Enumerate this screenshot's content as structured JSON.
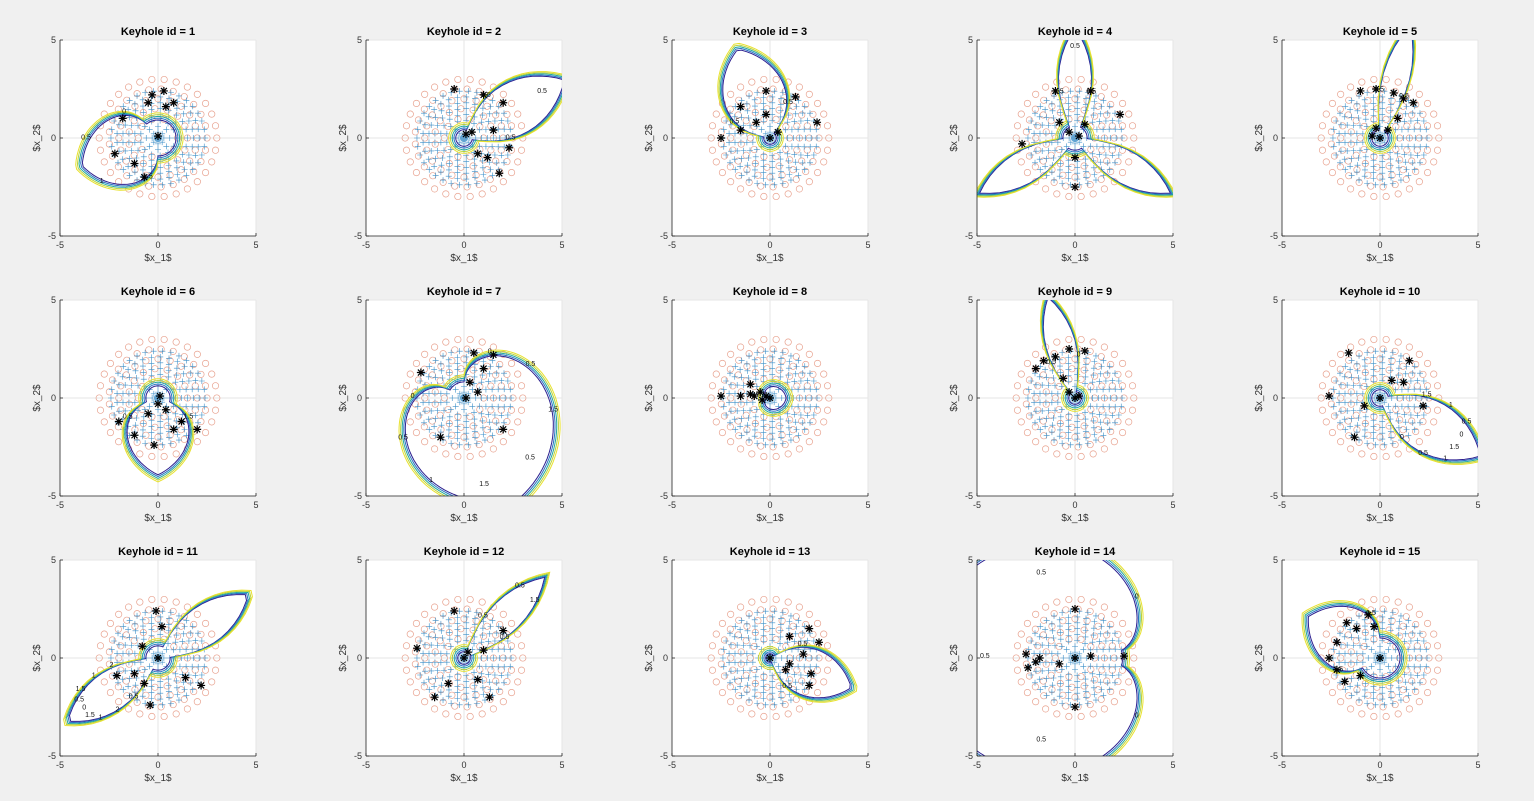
{
  "figure": {
    "background": "#f0f0f0",
    "axes_background": "#ffffff",
    "colors": {
      "grid": "#e6e6e6",
      "circles": "#e0836a",
      "plus": "#3c8fc8",
      "star": "#000000",
      "contours": [
        "#2c1f8f",
        "#2a72c4",
        "#23a9a0",
        "#b9d23c",
        "#e8e12d"
      ]
    }
  },
  "chart_data": [
    {
      "type": "contour",
      "title": "Keyhole id = 1",
      "xlabel": "$x_1$",
      "ylabel": "$x_2$",
      "xlim": [
        -5,
        5
      ],
      "ylim": [
        -5,
        5
      ],
      "xticks": [
        -5,
        0,
        5
      ],
      "yticks": [
        -5,
        0,
        5
      ],
      "grid": true,
      "keyhole": {
        "dir_deg": 200,
        "half_width_deg": 70,
        "base_radius": 1.1,
        "reach": 3.2,
        "lobes": 1
      },
      "contour_levels": [
        "0",
        "0.5",
        "1",
        "1.5"
      ],
      "stars": [
        [
          0.3,
          2.4
        ],
        [
          0.8,
          1.8
        ],
        [
          -0.5,
          1.8
        ],
        [
          -1.8,
          1.0
        ],
        [
          -2.2,
          -0.8
        ],
        [
          -1.2,
          -1.3
        ],
        [
          -0.7,
          -2.0
        ],
        [
          0.0,
          0.1
        ],
        [
          0.4,
          1.6
        ],
        [
          -0.3,
          2.2
        ]
      ]
    },
    {
      "type": "contour",
      "title": "Keyhole id = 2",
      "xlabel": "$x_1$",
      "ylabel": "$x_2$",
      "xlim": [
        -5,
        5
      ],
      "ylim": [
        -5,
        5
      ],
      "xticks": [
        -5,
        0,
        5
      ],
      "yticks": [
        -5,
        0,
        5
      ],
      "grid": true,
      "keyhole": {
        "dir_deg": 30,
        "half_width_deg": 40,
        "base_radius": 0.6,
        "reach": 5.5,
        "lobes": 1
      },
      "contour_levels": [
        "0.5",
        "0.5",
        "0.5"
      ],
      "stars": [
        [
          -0.5,
          2.5
        ],
        [
          1.0,
          2.2
        ],
        [
          2.0,
          1.8
        ],
        [
          1.5,
          0.4
        ],
        [
          2.3,
          -0.5
        ],
        [
          1.8,
          -1.8
        ],
        [
          1.2,
          -1.0
        ],
        [
          0.4,
          0.3
        ],
        [
          0.7,
          -0.8
        ],
        [
          0.1,
          0.2
        ]
      ]
    },
    {
      "type": "contour",
      "title": "Keyhole id = 3",
      "xlabel": "$x_1$",
      "ylabel": "$x_2$",
      "xlim": [
        -5,
        5
      ],
      "ylim": [
        -5,
        5
      ],
      "xticks": [
        -5,
        0,
        5
      ],
      "yticks": [
        -5,
        0,
        5
      ],
      "grid": true,
      "keyhole": {
        "dir_deg": 110,
        "half_width_deg": 60,
        "base_radius": 0.5,
        "reach": 4.5,
        "lobes": 1
      },
      "contour_levels": [
        "0.5",
        "0.5"
      ],
      "stars": [
        [
          -1.5,
          1.6
        ],
        [
          -0.2,
          2.4
        ],
        [
          1.3,
          2.1
        ],
        [
          2.4,
          0.8
        ],
        [
          -2.5,
          0.0
        ],
        [
          -1.5,
          0.4
        ],
        [
          -0.7,
          0.8
        ],
        [
          -0.2,
          1.2
        ],
        [
          0.4,
          0.3
        ],
        [
          0.0,
          0.0
        ]
      ]
    },
    {
      "type": "contour",
      "title": "Keyhole id = 4",
      "xlabel": "$x_1$",
      "ylabel": "$x_2$",
      "xlim": [
        -5,
        5
      ],
      "ylim": [
        -5,
        5
      ],
      "xticks": [
        -5,
        0,
        5
      ],
      "yticks": [
        -5,
        0,
        5
      ],
      "grid": true,
      "keyhole": {
        "dir_deg": 90,
        "half_width_deg": 25,
        "base_radius": 0.8,
        "reach": 5.0,
        "lobes": 3
      },
      "contour_levels": [
        "0.5",
        "0.5",
        "1.5"
      ],
      "stars": [
        [
          -1.0,
          2.4
        ],
        [
          0.8,
          2.4
        ],
        [
          2.3,
          1.2
        ],
        [
          -2.7,
          -0.3
        ],
        [
          0.0,
          -2.5
        ],
        [
          -0.8,
          0.8
        ],
        [
          0.5,
          0.7
        ],
        [
          0.0,
          -1.0
        ],
        [
          -0.3,
          0.3
        ],
        [
          0.2,
          0.1
        ]
      ]
    },
    {
      "type": "contour",
      "title": "Keyhole id = 5",
      "xlabel": "$x_1$",
      "ylabel": "$x_2$",
      "xlim": [
        -5,
        5
      ],
      "ylim": [
        -5,
        5
      ],
      "xticks": [
        -5,
        0,
        5
      ],
      "yticks": [
        -5,
        0,
        5
      ],
      "grid": true,
      "keyhole": {
        "dir_deg": 75,
        "half_width_deg": 20,
        "base_radius": 0.6,
        "reach": 5.5,
        "lobes": 1
      },
      "contour_levels": [
        "0.5",
        "0.5"
      ],
      "stars": [
        [
          -1.0,
          2.4
        ],
        [
          -0.2,
          2.5
        ],
        [
          0.7,
          2.3
        ],
        [
          1.2,
          2.0
        ],
        [
          1.7,
          1.8
        ],
        [
          0.9,
          1.0
        ],
        [
          -0.2,
          0.5
        ],
        [
          0.4,
          0.4
        ],
        [
          -0.4,
          0.1
        ],
        [
          0.0,
          0.0
        ]
      ]
    },
    {
      "type": "contour",
      "title": "Keyhole id = 6",
      "xlabel": "$x_1$",
      "ylabel": "$x_2$",
      "xlim": [
        -5,
        5
      ],
      "ylim": [
        -5,
        5
      ],
      "xticks": [
        -5,
        0,
        5
      ],
      "yticks": [
        -5,
        0,
        5
      ],
      "grid": true,
      "keyhole": {
        "dir_deg": 270,
        "half_width_deg": 70,
        "base_radius": 0.8,
        "reach": 3.3,
        "lobes": 1
      },
      "contour_levels": [
        "0.5",
        "1.5"
      ],
      "stars": [
        [
          -2.0,
          -1.2
        ],
        [
          -1.2,
          -1.9
        ],
        [
          -0.2,
          -2.4
        ],
        [
          0.8,
          -1.6
        ],
        [
          1.2,
          -1.2
        ],
        [
          2.0,
          -1.6
        ],
        [
          -0.5,
          -0.8
        ],
        [
          0.4,
          -0.6
        ],
        [
          0.0,
          -0.3
        ],
        [
          0.1,
          0.1
        ]
      ]
    },
    {
      "type": "contour",
      "title": "Keyhole id = 7",
      "xlabel": "$x_1$",
      "ylabel": "$x_2$",
      "xlim": [
        -5,
        5
      ],
      "ylim": [
        -5,
        5
      ],
      "xticks": [
        -5,
        0,
        5
      ],
      "yticks": [
        -5,
        0,
        5
      ],
      "grid": true,
      "keyhole": {
        "dir_deg": 300,
        "half_width_deg": 150,
        "base_radius": 1.0,
        "reach": 5.0,
        "lobes": 1
      },
      "contour_levels": [
        "0",
        "0.5",
        "1",
        "1.5",
        "0.5",
        "1.5",
        "0.5",
        "0"
      ],
      "stars": [
        [
          -2.2,
          1.3
        ],
        [
          0.5,
          2.3
        ],
        [
          1.0,
          1.5
        ],
        [
          1.5,
          2.2
        ],
        [
          2.0,
          -1.6
        ],
        [
          -1.2,
          -2.0
        ],
        [
          0.3,
          0.8
        ],
        [
          0.7,
          0.3
        ],
        [
          0.1,
          0.0
        ]
      ]
    },
    {
      "type": "contour",
      "title": "Keyhole id = 8",
      "xlabel": "$x_1$",
      "ylabel": "$x_2$",
      "xlim": [
        -5,
        5
      ],
      "ylim": [
        -5,
        5
      ],
      "xticks": [
        -5,
        0,
        5
      ],
      "yticks": [
        -5,
        0,
        5
      ],
      "grid": true,
      "keyhole": {
        "dir_deg": 0,
        "half_width_deg": 160,
        "base_radius": 0.4,
        "reach": 0.6,
        "lobes": 1
      },
      "contour_levels": [],
      "stars": [
        [
          -2.5,
          0.1
        ],
        [
          -1.5,
          0.1
        ],
        [
          -1.0,
          0.2
        ],
        [
          -0.8,
          0.1
        ],
        [
          -0.5,
          0.3
        ],
        [
          -1.0,
          0.7
        ],
        [
          -0.4,
          -0.1
        ],
        [
          -0.2,
          0.1
        ],
        [
          0.0,
          0.0
        ]
      ]
    },
    {
      "type": "contour",
      "title": "Keyhole id = 9",
      "xlabel": "$x_1$",
      "ylabel": "$x_2$",
      "xlim": [
        -5,
        5
      ],
      "ylim": [
        -5,
        5
      ],
      "xticks": [
        -5,
        0,
        5
      ],
      "yticks": [
        -5,
        0,
        5
      ],
      "grid": true,
      "keyhole": {
        "dir_deg": 105,
        "half_width_deg": 25,
        "base_radius": 0.5,
        "reach": 5.0,
        "lobes": 1
      },
      "contour_levels": [
        "0",
        "0.5"
      ],
      "stars": [
        [
          -2.0,
          1.5
        ],
        [
          -1.6,
          1.9
        ],
        [
          -1.0,
          2.1
        ],
        [
          -0.3,
          2.5
        ],
        [
          0.5,
          2.4
        ],
        [
          -0.6,
          1.0
        ],
        [
          -0.3,
          0.3
        ],
        [
          0.2,
          0.1
        ],
        [
          0.0,
          0.0
        ]
      ]
    },
    {
      "type": "contour",
      "title": "Keyhole id = 10",
      "xlabel": "$x_1$",
      "ylabel": "$x_2$",
      "xlim": [
        -5,
        5
      ],
      "ylim": [
        -5,
        5
      ],
      "xticks": [
        -5,
        0,
        5
      ],
      "yticks": [
        -5,
        0,
        5
      ],
      "grid": true,
      "keyhole": {
        "dir_deg": 330,
        "half_width_deg": 40,
        "base_radius": 0.6,
        "reach": 5.5,
        "lobes": 1
      },
      "contour_levels": [
        "0",
        "0.5",
        "1",
        "1.5",
        "0",
        "0.5",
        "1",
        "1.5"
      ],
      "stars": [
        [
          -2.6,
          0.1
        ],
        [
          -1.6,
          2.3
        ],
        [
          -0.8,
          -0.4
        ],
        [
          -1.3,
          -2.0
        ],
        [
          0.6,
          0.9
        ],
        [
          1.5,
          1.9
        ],
        [
          2.2,
          -0.4
        ],
        [
          1.2,
          0.8
        ],
        [
          0.0,
          0.0
        ]
      ]
    },
    {
      "type": "contour",
      "title": "Keyhole id = 11",
      "xlabel": "$x_1$",
      "ylabel": "$x_2$",
      "xlim": [
        -5,
        5
      ],
      "ylim": [
        -5,
        5
      ],
      "xticks": [
        -5,
        0,
        5
      ],
      "yticks": [
        -5,
        0,
        5
      ],
      "grid": true,
      "keyhole": {
        "dir_deg": 215,
        "half_width_deg": 30,
        "base_radius": 0.8,
        "reach": 5.0,
        "lobes": 2
      },
      "contour_levels": [
        "2",
        "1",
        "1.5",
        "0.5",
        "0",
        "1.5",
        "1",
        "2",
        "0.5"
      ],
      "stars": [
        [
          -0.1,
          2.4
        ],
        [
          0.2,
          1.6
        ],
        [
          -0.8,
          0.6
        ],
        [
          -1.2,
          -0.8
        ],
        [
          -0.7,
          -1.3
        ],
        [
          -2.1,
          -0.9
        ],
        [
          1.4,
          -1.0
        ],
        [
          2.2,
          -1.4
        ],
        [
          -0.4,
          -2.4
        ],
        [
          0.0,
          0.0
        ]
      ]
    },
    {
      "type": "contour",
      "title": "Keyhole id = 12",
      "xlabel": "$x_1$",
      "ylabel": "$x_2$",
      "xlim": [
        -5,
        5
      ],
      "ylim": [
        -5,
        5
      ],
      "xticks": [
        -5,
        0,
        5
      ],
      "yticks": [
        -5,
        0,
        5
      ],
      "grid": true,
      "keyhole": {
        "dir_deg": 45,
        "half_width_deg": 25,
        "base_radius": 0.5,
        "reach": 5.5,
        "lobes": 1
      },
      "contour_levels": [
        "0.5",
        "1.5",
        "0.5",
        "0.5"
      ],
      "stars": [
        [
          -2.4,
          0.5
        ],
        [
          -0.5,
          2.4
        ],
        [
          2.0,
          1.4
        ],
        [
          1.0,
          0.4
        ],
        [
          0.7,
          -1.1
        ],
        [
          -0.8,
          -1.3
        ],
        [
          -1.5,
          -2.0
        ],
        [
          1.3,
          -2.0
        ],
        [
          0.2,
          0.3
        ],
        [
          0.0,
          0.0
        ]
      ]
    },
    {
      "type": "contour",
      "title": "Keyhole id = 13",
      "xlabel": "$x_1$",
      "ylabel": "$x_2$",
      "xlim": [
        -5,
        5
      ],
      "ylim": [
        -5,
        5
      ],
      "xticks": [
        -5,
        0,
        5
      ],
      "yticks": [
        -5,
        0,
        5
      ],
      "grid": true,
      "keyhole": {
        "dir_deg": 340,
        "half_width_deg": 50,
        "base_radius": 0.4,
        "reach": 4.2,
        "lobes": 1
      },
      "contour_levels": [
        "0.5",
        "0.5"
      ],
      "stars": [
        [
          1.0,
          1.1
        ],
        [
          2.0,
          1.5
        ],
        [
          2.5,
          0.8
        ],
        [
          1.7,
          0.2
        ],
        [
          1.0,
          -0.3
        ],
        [
          2.1,
          -0.8
        ],
        [
          2.0,
          -1.4
        ],
        [
          0.8,
          -0.6
        ],
        [
          0.0,
          0.0
        ]
      ]
    },
    {
      "type": "contour",
      "title": "Keyhole id = 14",
      "xlabel": "$x_1$",
      "ylabel": "$x_2$",
      "xlim": [
        -5,
        5
      ],
      "ylim": [
        -5,
        5
      ],
      "xticks": [
        -5,
        0,
        5
      ],
      "yticks": [
        -5,
        0,
        5
      ],
      "grid": true,
      "keyhole": {
        "dir_deg": 180,
        "half_width_deg": 170,
        "base_radius": 2.6,
        "reach": 5.5,
        "lobes": 1
      },
      "contour_levels": [
        "0",
        "0.5",
        "0.5",
        "0.5",
        "0"
      ],
      "stars": [
        [
          -2.5,
          0.2
        ],
        [
          -2.0,
          -0.2
        ],
        [
          -2.4,
          -0.5
        ],
        [
          -1.8,
          0.0
        ],
        [
          0.0,
          2.5
        ],
        [
          0.8,
          0.1
        ],
        [
          2.5,
          0.1
        ],
        [
          0.0,
          -2.5
        ],
        [
          -0.8,
          -0.3
        ],
        [
          0.0,
          0.0
        ]
      ]
    },
    {
      "type": "contour",
      "title": "Keyhole id = 15",
      "xlabel": "$x_1$",
      "ylabel": "$x_2$",
      "xlim": [
        -5,
        5
      ],
      "ylim": [
        -5,
        5
      ],
      "xticks": [
        -5,
        0,
        5
      ],
      "yticks": [
        -5,
        0,
        5
      ],
      "grid": true,
      "keyhole": {
        "dir_deg": 150,
        "half_width_deg": 60,
        "base_radius": 1.2,
        "reach": 3.2,
        "lobes": 1
      },
      "contour_levels": [
        "0.5",
        "1.5"
      ],
      "stars": [
        [
          -1.7,
          1.8
        ],
        [
          -1.2,
          1.5
        ],
        [
          -0.6,
          2.2
        ],
        [
          -0.3,
          1.6
        ],
        [
          -2.2,
          0.8
        ],
        [
          -2.6,
          0.0
        ],
        [
          -2.2,
          -0.6
        ],
        [
          -1.8,
          -1.2
        ],
        [
          -1.0,
          -0.9
        ],
        [
          0.0,
          0.0
        ]
      ]
    }
  ]
}
